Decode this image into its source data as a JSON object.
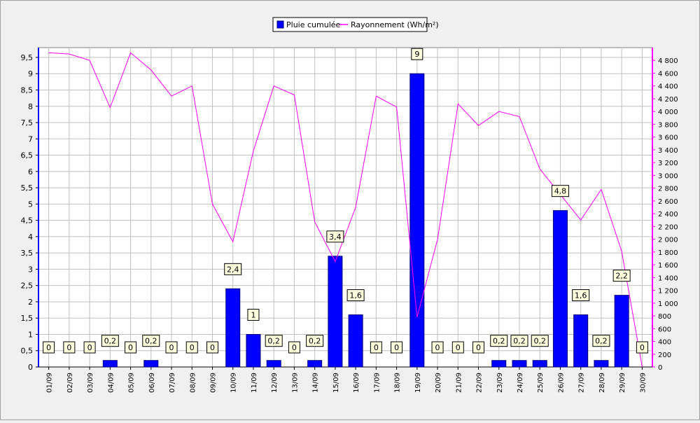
{
  "chart_data": {
    "type": "bar",
    "categories": [
      "01/09",
      "02/09",
      "03/09",
      "04/09",
      "05/09",
      "06/09",
      "07/09",
      "08/09",
      "09/09",
      "10/09",
      "11/09",
      "12/09",
      "13/09",
      "14/09",
      "15/09",
      "16/09",
      "17/09",
      "18/09",
      "19/09",
      "20/09",
      "21/09",
      "22/09",
      "23/09",
      "24/09",
      "25/09",
      "26/09",
      "27/09",
      "28/09",
      "29/09",
      "30/09"
    ],
    "series": [
      {
        "name": "Pluie cumulée",
        "kind": "bar",
        "axis": "left",
        "color": "#0000ff",
        "values": [
          0,
          0,
          0,
          0.2,
          0,
          0.2,
          0,
          0,
          0,
          2.4,
          1,
          0.2,
          0,
          0.2,
          3.4,
          1.6,
          0,
          0,
          9,
          0,
          0,
          0,
          0.2,
          0.2,
          0.2,
          4.8,
          1.6,
          0.2,
          2.2,
          0
        ],
        "labels": [
          "0",
          "0",
          "0",
          "0,2",
          "0",
          "0,2",
          "0",
          "0",
          "0",
          "2,4",
          "1",
          "0,2",
          "0",
          "0,2",
          "3,4",
          "1,6",
          "0",
          "0",
          "9",
          "0",
          "0",
          "0",
          "0,2",
          "0,2",
          "0,2",
          "4,8",
          "1,6",
          "0,2",
          "2,2",
          "0"
        ]
      },
      {
        "name": "Rayonnement (Wh/m²)",
        "kind": "line",
        "axis": "right",
        "color": "#ff00ff",
        "values": [
          4920,
          4900,
          4800,
          4060,
          4920,
          4650,
          4240,
          4400,
          2550,
          1960,
          3380,
          4400,
          4260,
          2270,
          1650,
          2500,
          4240,
          4070,
          780,
          2000,
          4120,
          3780,
          4000,
          3920,
          3100,
          2700,
          2300,
          2780,
          1810,
          0
        ]
      }
    ],
    "left_axis": {
      "min": 0,
      "max": 9.8,
      "ticks": [
        "0",
        "0,5",
        "1",
        "1,5",
        "2",
        "2,5",
        "3",
        "3,5",
        "4",
        "4,5",
        "5",
        "5,5",
        "6",
        "6,5",
        "7",
        "7,5",
        "8",
        "8,5",
        "9",
        "9,5"
      ]
    },
    "right_axis": {
      "min": 0,
      "max": 5000,
      "ticks": [
        "0",
        "200",
        "400",
        "600",
        "800",
        "1 000",
        "1 200",
        "1 400",
        "1 600",
        "1 800",
        "2 000",
        "2 200",
        "2 400",
        "2 600",
        "2 800",
        "3 000",
        "3 200",
        "3 400",
        "3 600",
        "3 800",
        "4 000",
        "4 200",
        "4 400",
        "4 600",
        "4 800"
      ]
    },
    "grid": true,
    "legend_position": "top-center",
    "colors": {
      "background": "#f0f0f0",
      "plot": "#ffffff",
      "grid": "#c0c0c0",
      "label_box": "#ffffe0"
    }
  }
}
